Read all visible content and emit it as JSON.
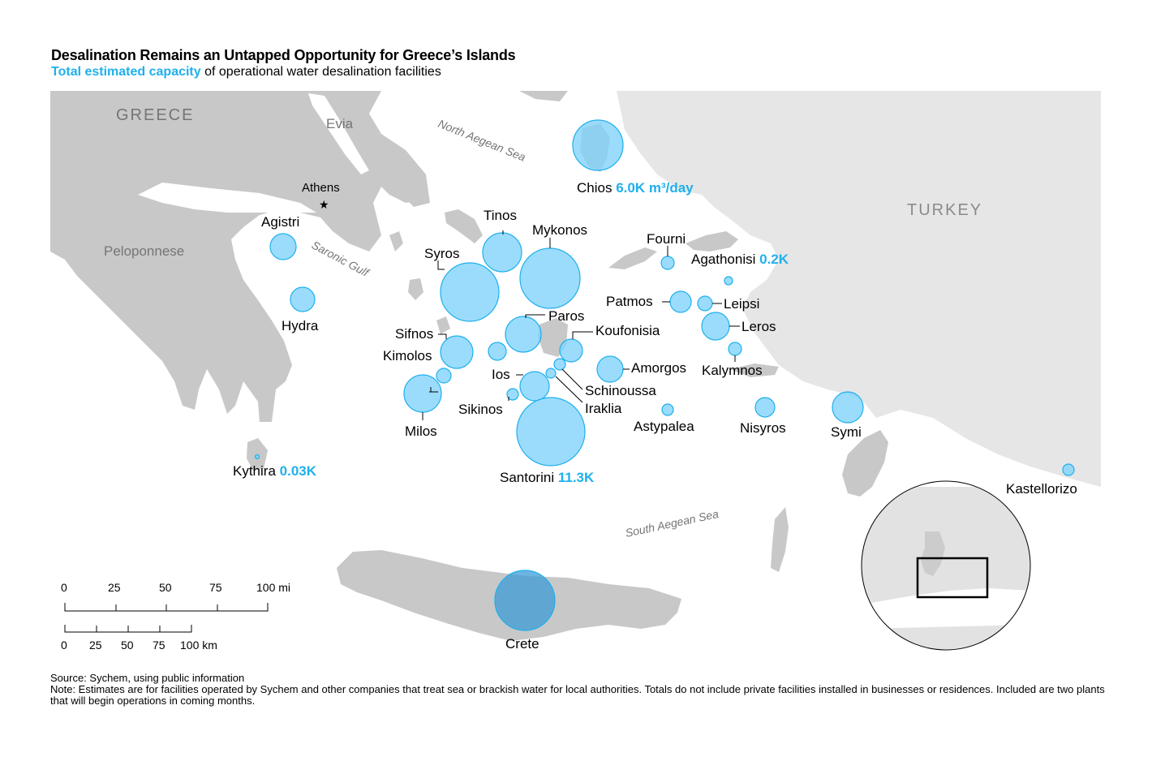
{
  "title": "Desalination Remains an Untapped Opportunity for Greece’s Islands",
  "subtitle": {
    "highlight": "Total estimated capacity",
    "rest": " of operational water desalination facilities"
  },
  "colors": {
    "accent": "#1fb0ec",
    "bubble_fill": "#7fd2fb",
    "bubble_stroke": "#1fb0ec",
    "land": "#c8c8c8",
    "land_far": "#e6e6e6",
    "water": "#ffffff"
  },
  "region_labels": {
    "greece": "GREECE",
    "turkey": "TURKEY",
    "evia": "Evia",
    "peloponnese": "Peloponnese",
    "athens": "Athens",
    "north_aegean": "North Aegean Sea",
    "south_aegean": "South Aegean Sea",
    "saronic": "Saronic Gulf"
  },
  "islands": [
    {
      "name": "Chios",
      "value": "6.0K m³/day",
      "rel_size": 6.0
    },
    {
      "name": "Tinos",
      "value": "",
      "rel_size": 4.0
    },
    {
      "name": "Mykonos",
      "value": "",
      "rel_size": 9.0
    },
    {
      "name": "Syros",
      "value": "",
      "rel_size": 10.0
    },
    {
      "name": "Agistri",
      "value": "",
      "rel_size": 1.5
    },
    {
      "name": "Hydra",
      "value": "",
      "rel_size": 1.5
    },
    {
      "name": "Fourni",
      "value": "",
      "rel_size": 0.3
    },
    {
      "name": "Agathonisi",
      "value": "0.2K",
      "rel_size": 0.2
    },
    {
      "name": "Patmos",
      "value": "",
      "rel_size": 1.0
    },
    {
      "name": "Leipsi",
      "value": "",
      "rel_size": 0.5
    },
    {
      "name": "Leros",
      "value": "",
      "rel_size": 2.0
    },
    {
      "name": "Kalymnos",
      "value": "",
      "rel_size": 0.4
    },
    {
      "name": "Paros",
      "value": "",
      "rel_size": 3.0
    },
    {
      "name": "Koufonisia",
      "value": "",
      "rel_size": 1.2
    },
    {
      "name": "Sifnos",
      "value": "",
      "rel_size": 2.5
    },
    {
      "name": "Kimolos",
      "value": "",
      "rel_size": 0.5
    },
    {
      "name": "Milos",
      "value": "",
      "rel_size": 3.5
    },
    {
      "name": "Ios",
      "value": "",
      "rel_size": 2.0
    },
    {
      "name": "Sikinos",
      "value": "",
      "rel_size": 0.3
    },
    {
      "name": "Schinoussa",
      "value": "",
      "rel_size": 0.3
    },
    {
      "name": "Iraklia",
      "value": "",
      "rel_size": 0.3
    },
    {
      "name": "Amorgos",
      "value": "",
      "rel_size": 1.5
    },
    {
      "name": "Astypalea",
      "value": "",
      "rel_size": 0.3
    },
    {
      "name": "Santorini",
      "value": "11.3K",
      "rel_size": 11.3
    },
    {
      "name": "Nisyros",
      "value": "",
      "rel_size": 0.8
    },
    {
      "name": "Symi",
      "value": "",
      "rel_size": 2.0
    },
    {
      "name": "Kythira",
      "value": "0.03K",
      "rel_size": 0.03
    },
    {
      "name": "Kastellorizo",
      "value": "",
      "rel_size": 0.3
    },
    {
      "name": "Crete",
      "value": "",
      "rel_size": 8.0
    }
  ],
  "scale_bar": {
    "miles_ticks": [
      "0",
      "25",
      "50",
      "75",
      "100 mi"
    ],
    "km_ticks": [
      "0",
      "25",
      "50",
      "75",
      "100 km"
    ]
  },
  "source": "Source: Sychem, using public information",
  "note": "Note: Estimates are for facilities operated by Sychem and other companies that treat sea or brackish water for local authorities. Totals do not include private facilities installed in businesses or residences. Included are two plants that will begin operations in coming months."
}
